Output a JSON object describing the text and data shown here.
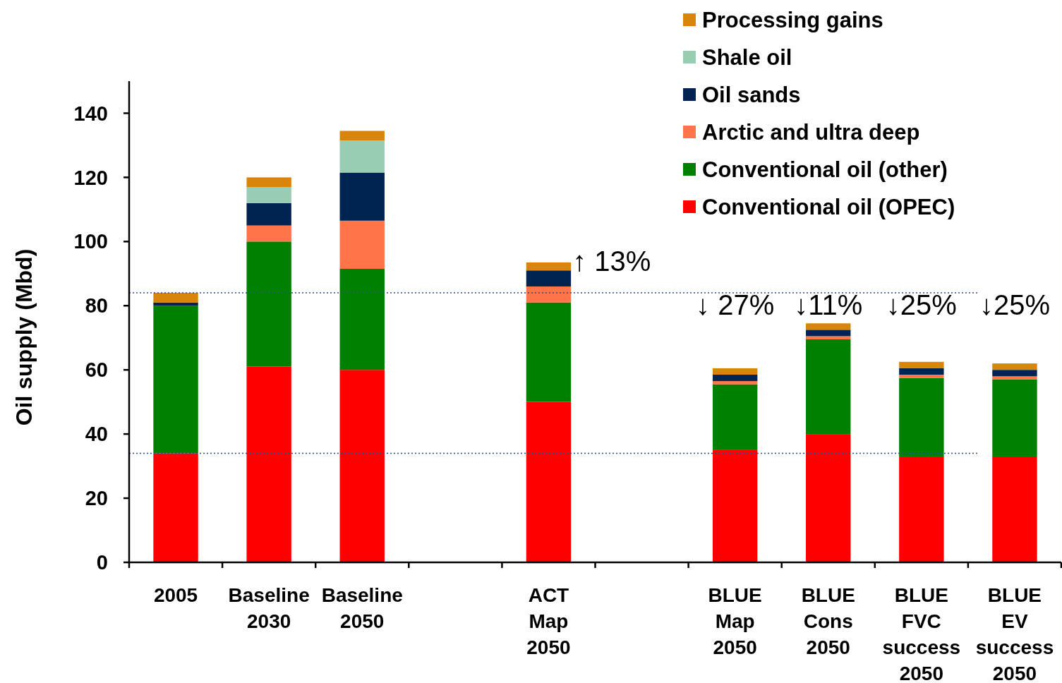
{
  "chart_data": {
    "type": "bar",
    "stacked": true,
    "ylabel": "Oil supply (Mbd)",
    "categories": [
      "2005",
      "Baseline\n2030",
      "Baseline\n2050",
      null,
      "ACT\nMap\n2050",
      null,
      "BLUE\nMap\n2050",
      "BLUE\nCons\n2050",
      "BLUE\nFVC\nsuccess\n2050",
      "BLUE\nEV\nsuccess\n2050"
    ],
    "series": [
      {
        "name": "Conventional oil (OPEC)",
        "color": "#ff0000",
        "values": [
          34,
          61,
          60,
          null,
          50,
          null,
          35,
          40,
          33,
          33
        ]
      },
      {
        "name": "Conventional oil (other)",
        "color": "#008000",
        "values": [
          46,
          39,
          31.5,
          null,
          31,
          null,
          20.5,
          29.5,
          24.5,
          24
        ]
      },
      {
        "name": "Arctic and ultra deep",
        "color": "#ff7449",
        "values": [
          0,
          5,
          15,
          null,
          5,
          null,
          1,
          1,
          1,
          1
        ]
      },
      {
        "name": "Oil sands",
        "color": "#002451",
        "values": [
          1,
          7,
          15,
          null,
          5,
          null,
          2,
          2,
          2,
          2
        ]
      },
      {
        "name": "Shale oil",
        "color": "#99cdb3",
        "values": [
          0,
          5,
          10,
          null,
          0,
          null,
          0,
          0,
          0,
          0
        ]
      },
      {
        "name": "Processing gains",
        "color": "#d9850b",
        "values": [
          3,
          3,
          3,
          null,
          2.5,
          null,
          2,
          2,
          2,
          2
        ]
      }
    ],
    "ylim": [
      0,
      150
    ],
    "yticks": [
      0,
      20,
      40,
      60,
      80,
      100,
      120,
      140
    ],
    "legend": "top right",
    "ref_lines": [
      {
        "axis": "y",
        "value": 84,
        "color": "#2e4a8a",
        "line_style": "dotted"
      },
      {
        "axis": "y",
        "value": 34,
        "color": "#2e4a8a",
        "line_style": "dotted"
      }
    ],
    "annotations": [
      {
        "text": "↑ 13%",
        "x": "ACT\nMap\n2050",
        "y": 93.5
      },
      {
        "text": "↓ 27%",
        "x": "BLUE\nMap\n2050",
        "y": 60.5
      },
      {
        "text": "↓11%",
        "x": "BLUE\nCons\n2050",
        "y": 74.5
      },
      {
        "text": "↓25%",
        "x": "BLUE\nFVC\nsuccess\n2050",
        "y": 62.5
      },
      {
        "text": "↓25%",
        "x": "BLUE\nEV\nsuccess\n2050",
        "y": 62
      }
    ]
  }
}
